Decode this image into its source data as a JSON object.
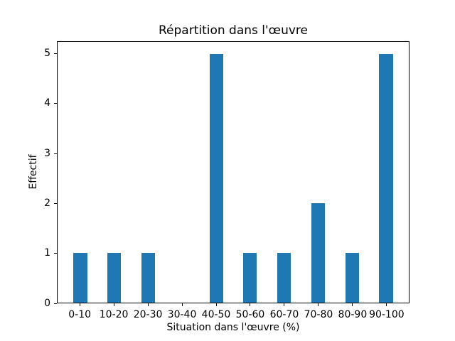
{
  "chart_data": {
    "type": "bar",
    "title": "Répartition dans l'œuvre",
    "xlabel": "Situation dans l'œuvre (%)",
    "ylabel": "Effectif",
    "categories": [
      "0-10",
      "10-20",
      "20-30",
      "30-40",
      "40-50",
      "50-60",
      "60-70",
      "70-80",
      "80-90",
      "90-100"
    ],
    "values": [
      1,
      1,
      1,
      0,
      5,
      1,
      1,
      2,
      1,
      5
    ],
    "yticks": [
      0,
      1,
      2,
      3,
      4,
      5
    ],
    "ylim": [
      0,
      5.25
    ],
    "bar_color": "#1f77b4",
    "bar_width_fraction": 0.4,
    "grid": false,
    "legend_position": "none"
  }
}
